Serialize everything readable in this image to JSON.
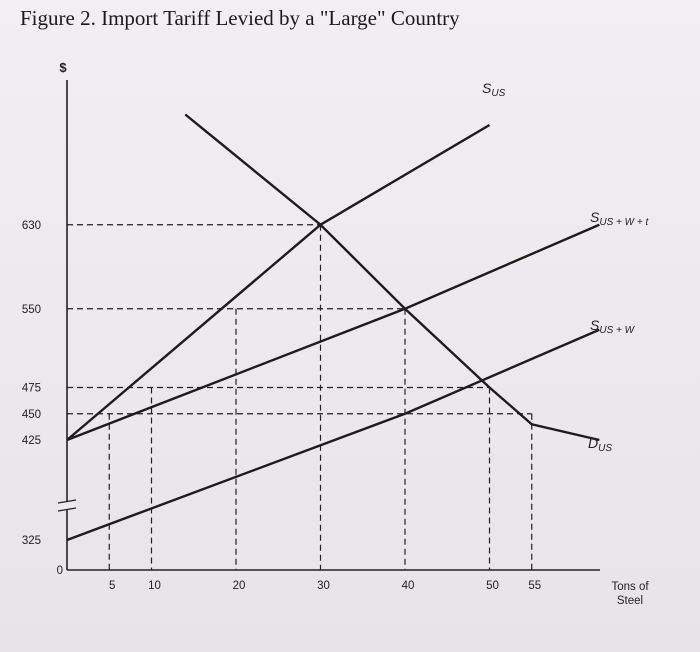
{
  "title": "Figure 2. Import Tariff Levied by a \"Large\" Country",
  "chart_data": {
    "type": "line",
    "title": "Figure 2. Import Tariff Levied by a \"Large\" Country",
    "xlabel": "Tons of Steel",
    "ylabel": "$",
    "x_ticks": [
      0,
      5,
      10,
      20,
      30,
      40,
      50,
      55
    ],
    "y_ticks": [
      0,
      325,
      425,
      450,
      475,
      550,
      630
    ],
    "axis_break": true,
    "series": [
      {
        "name": "SUS",
        "label_main": "S",
        "label_sub": "US",
        "x": [
          0,
          30,
          50
        ],
        "y": [
          425,
          630,
          725
        ]
      },
      {
        "name": "SUS + W + t",
        "label_main": "S",
        "label_sub": "US + W + t",
        "x": [
          0,
          40,
          63
        ],
        "y": [
          425,
          550,
          630
        ]
      },
      {
        "name": "SUS + W",
        "label_main": "S",
        "label_sub": "US + W",
        "x": [
          0,
          40,
          63
        ],
        "y": [
          325,
          450,
          530
        ]
      },
      {
        "name": "DUS",
        "label_main": "D",
        "label_sub": "US",
        "x": [
          14,
          30,
          40,
          50,
          55,
          63
        ],
        "y": [
          735,
          630,
          550,
          475,
          440,
          425
        ]
      }
    ],
    "reference_lines": {
      "horizontal": [
        630,
        550,
        475,
        450
      ],
      "vertical": [
        5,
        10,
        20,
        30,
        40,
        50,
        55
      ]
    }
  }
}
